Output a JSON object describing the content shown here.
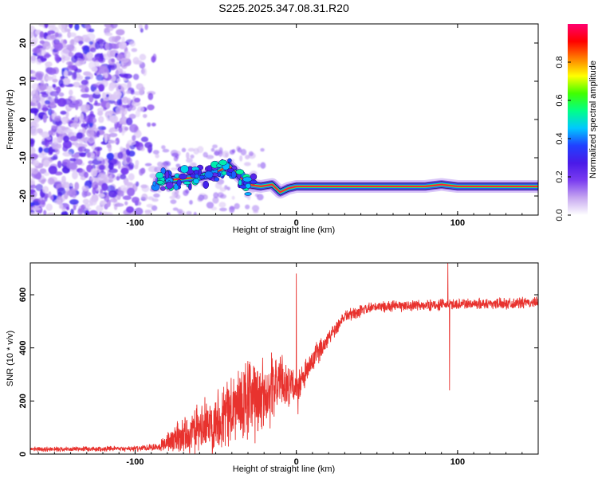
{
  "chart_data": [
    {
      "type": "heatmap",
      "title": "S225.2025.347.08.31.R20",
      "xlabel": "Height of straight line (km)",
      "ylabel": "Frequency (Hz)",
      "xlim": [
        -165,
        150
      ],
      "ylim": [
        -25,
        25
      ],
      "xticks": [
        -100,
        0,
        100
      ],
      "yticks": [
        -20,
        -10,
        0,
        10,
        20
      ],
      "colorbar": {
        "label": "Normalized spectral amplitude",
        "range": [
          0,
          1
        ],
        "ticks": [
          "0.0",
          "0.2",
          "0.4",
          "0.6",
          "0.8"
        ],
        "colors": [
          "#ffffff",
          "#c6a6f0",
          "#7a3cf0",
          "#4a1ae8",
          "#2040ff",
          "#00c8ff",
          "#00ff88",
          "#40ff00",
          "#ffff00",
          "#ff8000",
          "#ff0000",
          "#ff0070"
        ]
      },
      "noise_region": {
        "x": [
          -165,
          -85
        ],
        "freq": [
          -25,
          25
        ]
      },
      "signal_track": [
        {
          "x": -85,
          "f": -16
        },
        {
          "x": -70,
          "f": -15.5
        },
        {
          "x": -60,
          "f": -15
        },
        {
          "x": -50,
          "f": -14
        },
        {
          "x": -42,
          "f": -12
        },
        {
          "x": -35,
          "f": -15
        },
        {
          "x": -30,
          "f": -17
        },
        {
          "x": -22,
          "f": -17.5
        },
        {
          "x": -15,
          "f": -17
        },
        {
          "x": -10,
          "f": -19
        },
        {
          "x": -5,
          "f": -18
        },
        {
          "x": 0,
          "f": -17.5
        },
        {
          "x": 40,
          "f": -17.5
        },
        {
          "x": 80,
          "f": -17.5
        },
        {
          "x": 90,
          "f": -17
        },
        {
          "x": 100,
          "f": -17.5
        },
        {
          "x": 150,
          "f": -17.5
        }
      ]
    },
    {
      "type": "line",
      "xlabel": "Height of straight line (km)",
      "ylabel": "SNR (10 * v/v)",
      "xlim": [
        -165,
        150
      ],
      "ylim": [
        0,
        720
      ],
      "xticks": [
        -100,
        0,
        100
      ],
      "yticks": [
        0,
        200,
        400,
        600
      ],
      "series": [
        {
          "name": "SNR",
          "color": "#e8322e",
          "envelope": [
            {
              "x": -165,
              "mean": 18,
              "amp": 10
            },
            {
              "x": -100,
              "mean": 20,
              "amp": 12
            },
            {
              "x": -85,
              "mean": 30,
              "amp": 20
            },
            {
              "x": -75,
              "mean": 60,
              "amp": 70
            },
            {
              "x": -60,
              "mean": 90,
              "amp": 110
            },
            {
              "x": -45,
              "mean": 150,
              "amp": 150
            },
            {
              "x": -30,
              "mean": 200,
              "amp": 200
            },
            {
              "x": -20,
              "mean": 220,
              "amp": 180
            },
            {
              "x": -10,
              "mean": 280,
              "amp": 120
            },
            {
              "x": 0,
              "mean": 240,
              "amp": 70
            },
            {
              "x": 10,
              "mean": 350,
              "amp": 60
            },
            {
              "x": 20,
              "mean": 440,
              "amp": 40
            },
            {
              "x": 30,
              "mean": 520,
              "amp": 30
            },
            {
              "x": 50,
              "mean": 555,
              "amp": 25
            },
            {
              "x": 80,
              "mean": 560,
              "amp": 25
            },
            {
              "x": 100,
              "mean": 565,
              "amp": 25
            },
            {
              "x": 150,
              "mean": 570,
              "amp": 25
            }
          ],
          "spikes": [
            {
              "x": 0,
              "y": 680
            },
            {
              "x": 1,
              "y": 150
            },
            {
              "x": 94,
              "y": 720
            },
            {
              "x": 95,
              "y": 240
            }
          ]
        }
      ]
    }
  ]
}
